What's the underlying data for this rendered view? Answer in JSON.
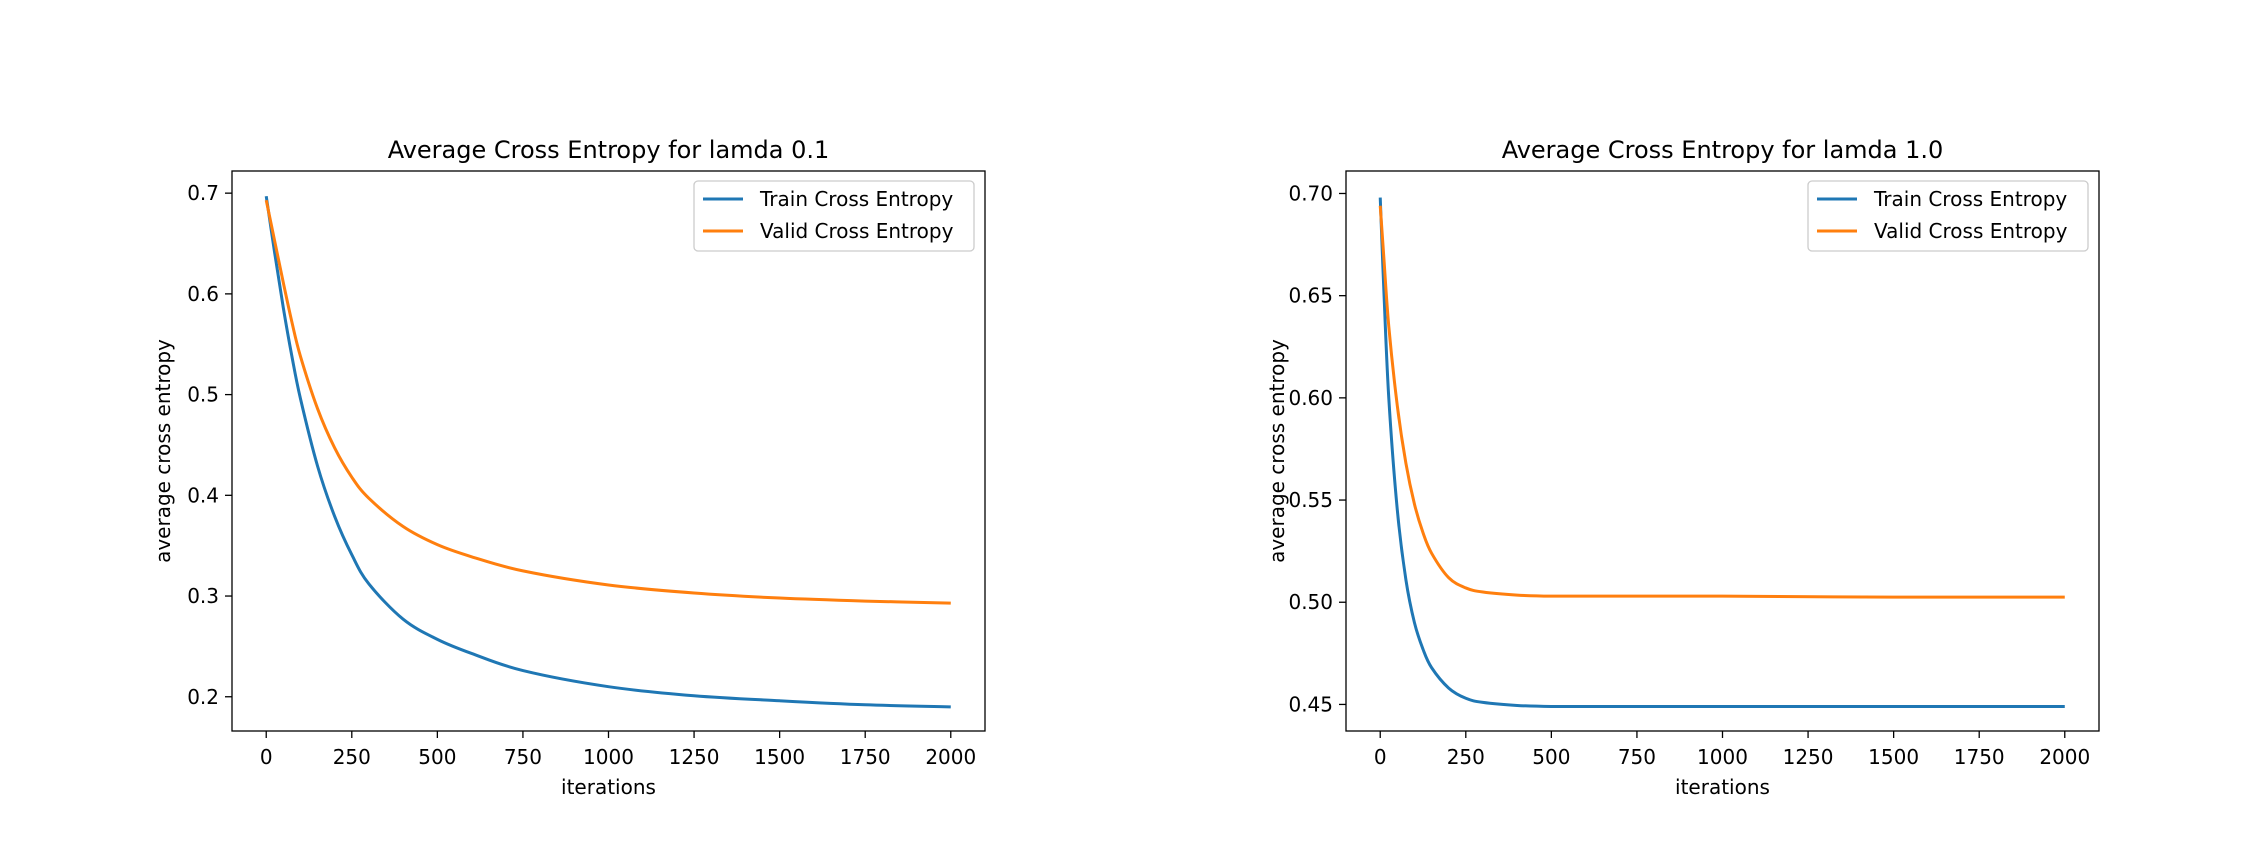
{
  "chart_data": [
    {
      "type": "line",
      "title": "Average Cross Entropy for lamda 0.1",
      "xlabel": "iterations",
      "ylabel": "average cross entropy",
      "xlim": [
        -100,
        2100
      ],
      "ylim": [
        0.166,
        0.722
      ],
      "xticks": [
        0,
        250,
        500,
        750,
        1000,
        1250,
        1500,
        1750,
        2000
      ],
      "xtick_labels": [
        "0",
        "250",
        "500",
        "750",
        "1000",
        "1250",
        "1500",
        "1750",
        "2000"
      ],
      "yticks": [
        0.2,
        0.3,
        0.4,
        0.5,
        0.6,
        0.7
      ],
      "ytick_labels": [
        "0.2",
        "0.3",
        "0.4",
        "0.5",
        "0.6",
        "0.7"
      ],
      "grid": false,
      "legend_position": "top-right",
      "x": [
        0,
        25,
        50,
        75,
        100,
        150,
        200,
        250,
        300,
        400,
        500,
        600,
        750,
        1000,
        1250,
        1500,
        1750,
        2000
      ],
      "series": [
        {
          "name": "Train Cross Entropy",
          "color": "#1f77b4",
          "values": [
            0.697,
            0.64,
            0.586,
            0.538,
            0.496,
            0.429,
            0.379,
            0.341,
            0.312,
            0.277,
            0.257,
            0.243,
            0.226,
            0.21,
            0.201,
            0.196,
            0.192,
            0.19
          ]
        },
        {
          "name": "Valid Cross Entropy",
          "color": "#ff7f0e",
          "values": [
            0.693,
            0.652,
            0.611,
            0.572,
            0.538,
            0.486,
            0.447,
            0.418,
            0.397,
            0.369,
            0.351,
            0.339,
            0.325,
            0.311,
            0.303,
            0.298,
            0.295,
            0.293
          ]
        }
      ]
    },
    {
      "type": "line",
      "title": "Average Cross Entropy for lamda 1.0",
      "xlabel": "iterations",
      "ylabel": "average cross entropy",
      "xlim": [
        -100,
        2100
      ],
      "ylim": [
        0.437,
        0.711
      ],
      "xticks": [
        0,
        250,
        500,
        750,
        1000,
        1250,
        1500,
        1750,
        2000
      ],
      "xtick_labels": [
        "0",
        "250",
        "500",
        "750",
        "1000",
        "1250",
        "1500",
        "1750",
        "2000"
      ],
      "yticks": [
        0.45,
        0.5,
        0.55,
        0.6,
        0.65,
        0.7
      ],
      "ytick_labels": [
        "0.45",
        "0.50",
        "0.55",
        "0.60",
        "0.65",
        "0.70"
      ],
      "grid": false,
      "legend_position": "top-right",
      "x": [
        0,
        10,
        25,
        50,
        75,
        100,
        125,
        150,
        200,
        250,
        300,
        400,
        500,
        750,
        1000,
        1500,
        2000
      ],
      "series": [
        {
          "name": "Train Cross Entropy",
          "color": "#1f77b4",
          "values": [
            0.698,
            0.655,
            0.6,
            0.545,
            0.511,
            0.49,
            0.477,
            0.468,
            0.458,
            0.453,
            0.451,
            0.4495,
            0.449,
            0.449,
            0.449,
            0.449,
            0.449
          ]
        },
        {
          "name": "Valid Cross Entropy",
          "color": "#ff7f0e",
          "values": [
            0.694,
            0.67,
            0.635,
            0.596,
            0.568,
            0.548,
            0.534,
            0.524,
            0.512,
            0.507,
            0.505,
            0.5035,
            0.503,
            0.503,
            0.503,
            0.5025,
            0.5025
          ]
        }
      ]
    }
  ]
}
